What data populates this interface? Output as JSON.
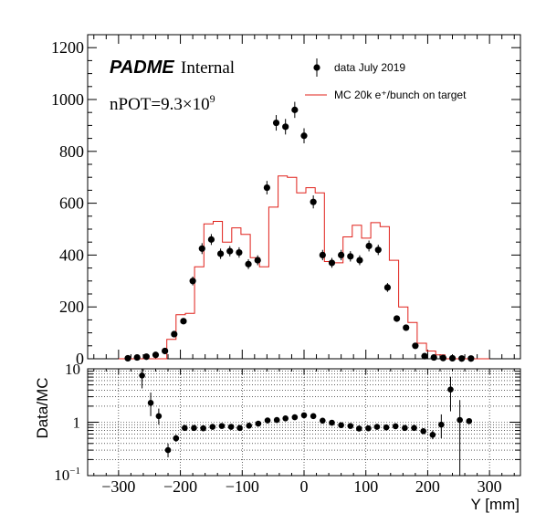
{
  "chart_data": [
    {
      "type": "scatter",
      "panel": "main",
      "x_range": [
        -350,
        350
      ],
      "ylim": [
        0,
        1250
      ],
      "y_ticks": [
        "0",
        "200",
        "400",
        "600",
        "800",
        "1000",
        "1200"
      ],
      "series": [
        {
          "name": "data July 2019",
          "type": "scatter",
          "color": "#000000",
          "x": [
            -285,
            -270,
            -255,
            -240,
            -225,
            -210,
            -195,
            -180,
            -165,
            -150,
            -135,
            -120,
            -105,
            -90,
            -75,
            -60,
            -45,
            -30,
            -15,
            0,
            15,
            30,
            45,
            60,
            75,
            90,
            105,
            120,
            135,
            150,
            165,
            180,
            195,
            210,
            225,
            240,
            255,
            270
          ],
          "y": [
            2,
            5,
            8,
            15,
            30,
            95,
            145,
            300,
            425,
            460,
            405,
            415,
            410,
            365,
            380,
            660,
            910,
            895,
            960,
            860,
            605,
            400,
            370,
            400,
            395,
            380,
            435,
            420,
            275,
            155,
            120,
            50,
            10,
            5,
            3,
            2,
            1,
            1
          ],
          "yerr": [
            2,
            2,
            3,
            4,
            6,
            10,
            12,
            17,
            21,
            21,
            20,
            20,
            20,
            19,
            19,
            26,
            30,
            30,
            31,
            29,
            25,
            20,
            19,
            20,
            20,
            19,
            21,
            20,
            17,
            12,
            11,
            7,
            3,
            2,
            2,
            1,
            1,
            1
          ]
        },
        {
          "name": "MC 20k e⁺/bunch on target",
          "type": "step",
          "color": "#e0201a",
          "edges": [
            -300,
            -222,
            -207,
            -192,
            -177,
            -162,
            -147,
            -132,
            -117,
            -102,
            -87,
            -72,
            -57,
            -42,
            -27,
            -12,
            3,
            18,
            33,
            48,
            63,
            78,
            93,
            108,
            123,
            138,
            153,
            168,
            183,
            198,
            213,
            228,
            300
          ],
          "values": [
            0,
            75,
            170,
            175,
            355,
            520,
            530,
            450,
            505,
            480,
            390,
            355,
            585,
            705,
            700,
            640,
            660,
            640,
            375,
            370,
            470,
            515,
            465,
            525,
            510,
            380,
            200,
            140,
            60,
            30,
            15,
            0
          ]
        }
      ],
      "annotations": {
        "experiment": "PADME",
        "status": "Internal",
        "npot_prefix": "nPOT=9.3×10",
        "npot_exp": "9"
      },
      "legend_position": "top-right"
    },
    {
      "type": "scatter",
      "panel": "ratio",
      "x_range": [
        -350,
        350
      ],
      "ylim": [
        0.1,
        10
      ],
      "log_y": true,
      "ylabel": "Data/MC",
      "xlabel": "Y [mm]",
      "x_ticks": [
        "−300",
        "−200",
        "−100",
        "0",
        "100",
        "200",
        "300"
      ],
      "y_ticks": [
        "10",
        "1"
      ],
      "series": [
        {
          "name": "Data/MC",
          "color": "#000000",
          "x": [
            -262,
            -248,
            -235,
            -220,
            -207,
            -193,
            -178,
            -163,
            -148,
            -133,
            -118,
            -104,
            -89,
            -74,
            -59,
            -44,
            -30,
            -15,
            0,
            15,
            30,
            45,
            60,
            75,
            89,
            104,
            118,
            133,
            148,
            163,
            178,
            193,
            208,
            222,
            237,
            252,
            267
          ],
          "y": [
            7.5,
            2.3,
            1.3,
            0.3,
            0.5,
            0.78,
            0.78,
            0.77,
            0.82,
            0.85,
            0.82,
            0.78,
            0.86,
            0.94,
            1.08,
            1.1,
            1.18,
            1.24,
            1.35,
            1.3,
            1.07,
            0.98,
            0.88,
            0.85,
            0.76,
            0.77,
            0.82,
            0.8,
            0.84,
            0.78,
            0.78,
            0.68,
            0.58,
            0.9,
            4.1,
            1.1,
            1.05
          ],
          "yerr_lo": [
            3.2,
            1.0,
            0.4,
            0.08,
            0.07,
            0.05,
            0.05,
            0.04,
            0.04,
            0.04,
            0.04,
            0.04,
            0.04,
            0.04,
            0.05,
            0.05,
            0.05,
            0.05,
            0.05,
            0.05,
            0.05,
            0.05,
            0.04,
            0.04,
            0.04,
            0.04,
            0.04,
            0.04,
            0.05,
            0.05,
            0.05,
            0.07,
            0.1,
            0.4,
            2.5,
            1.0,
            0.0
          ],
          "yerr_hi": [
            3.5,
            1.3,
            0.5,
            0.1,
            0.08,
            0.05,
            0.05,
            0.04,
            0.04,
            0.04,
            0.04,
            0.04,
            0.04,
            0.04,
            0.05,
            0.05,
            0.05,
            0.05,
            0.05,
            0.05,
            0.05,
            0.05,
            0.04,
            0.04,
            0.04,
            0.04,
            0.04,
            0.04,
            0.05,
            0.05,
            0.05,
            0.08,
            0.12,
            0.5,
            3.0,
            1.5,
            0.0
          ]
        }
      ],
      "grid": true
    }
  ]
}
